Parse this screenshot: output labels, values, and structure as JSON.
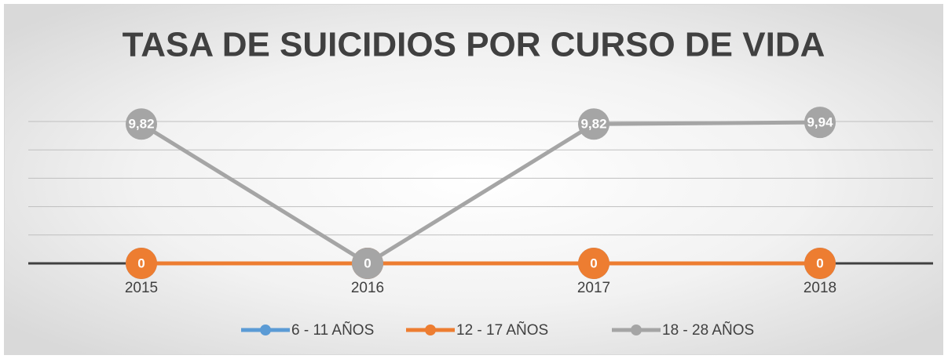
{
  "chart_data": {
    "type": "line",
    "title": "TASA DE SUICIDIOS POR CURSO DE VIDA",
    "categories": [
      "2015",
      "2016",
      "2017",
      "2018"
    ],
    "series": [
      {
        "name": "6 - 11 AÑOS",
        "color": "#5b9bd5",
        "values": [
          0,
          0,
          0,
          0
        ]
      },
      {
        "name": "12 - 17 AÑOS",
        "color": "#ed7d31",
        "values": [
          0,
          0,
          0,
          0
        ]
      },
      {
        "name": "18 - 28 AÑOS",
        "color": "#a5a5a5",
        "values": [
          9.82,
          0,
          9.82,
          9.94
        ],
        "value_labels": [
          "9,82",
          "0",
          "9,82",
          "9,94"
        ]
      }
    ],
    "ylim": [
      0,
      10
    ],
    "yticks": [
      0,
      2,
      4,
      6,
      8,
      10
    ],
    "grid": true,
    "legend": "bottom"
  }
}
